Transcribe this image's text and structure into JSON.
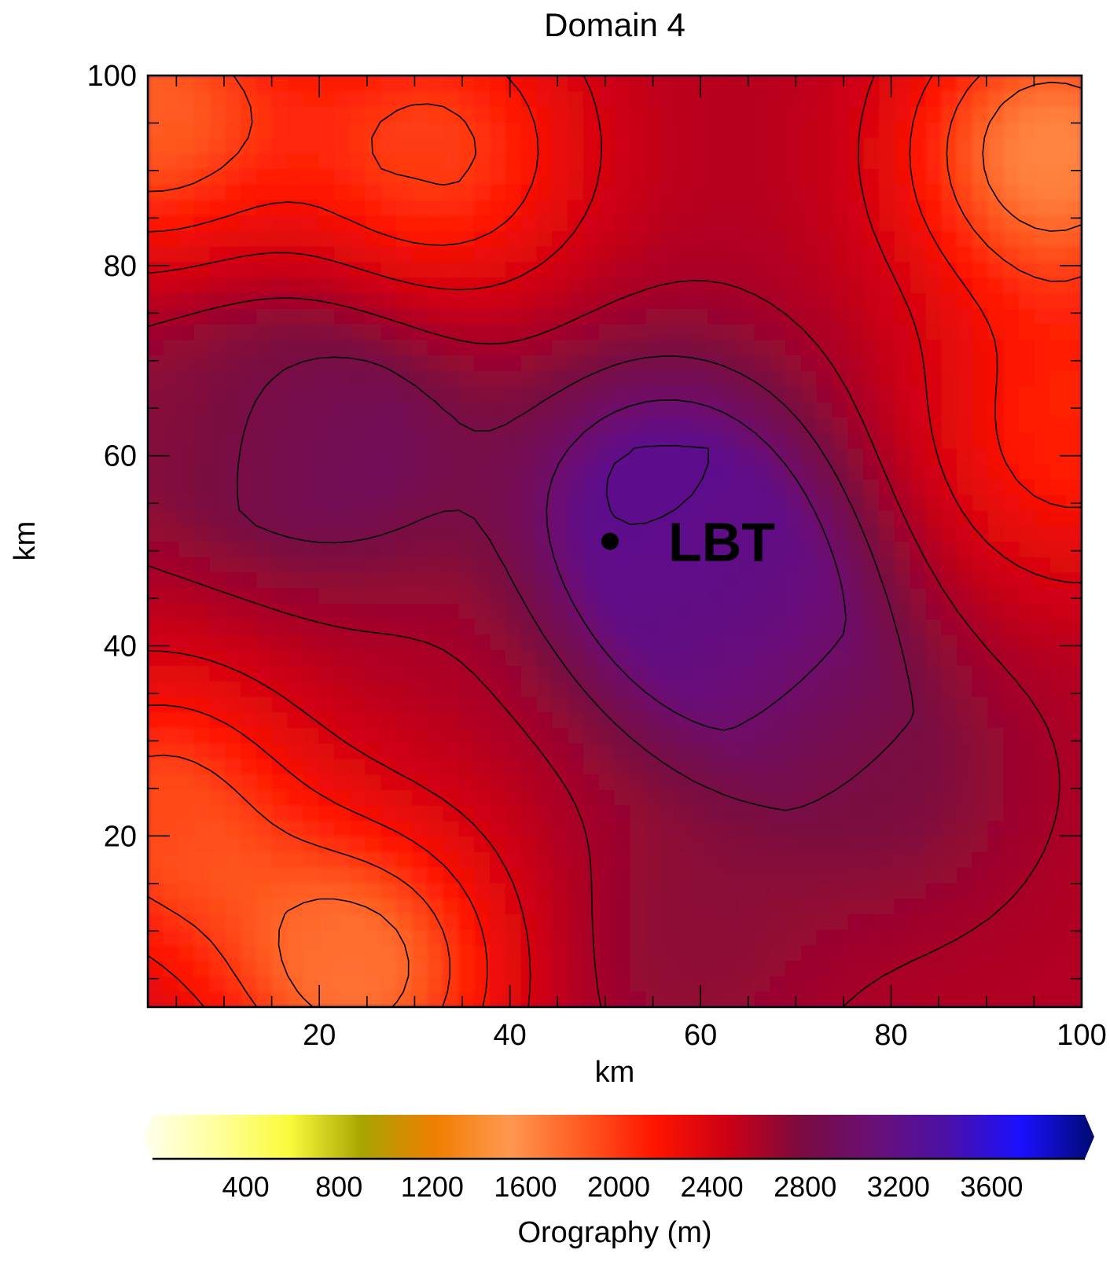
{
  "chart_data": {
    "type": "heatmap",
    "title": "Domain 4",
    "xlabel": "km",
    "ylabel": "km",
    "xlim": [
      2,
      100
    ],
    "ylim": [
      2,
      100
    ],
    "x_ticks": [
      20,
      40,
      60,
      80,
      100
    ],
    "y_ticks": [
      20,
      40,
      60,
      80,
      100
    ],
    "x_tick_labels": [
      "20",
      "40",
      "60",
      "80",
      "100"
    ],
    "y_tick_labels": [
      "20",
      "40",
      "60",
      "80",
      "100"
    ],
    "marker": {
      "label": "LBT",
      "x": 50.5,
      "y": 51
    },
    "colorbar": {
      "label": "Orography (m)",
      "range": [
        0,
        4000
      ],
      "ticks": [
        400,
        800,
        1200,
        1600,
        2000,
        2400,
        2800,
        3200,
        3600
      ],
      "tick_labels": [
        "400",
        "800",
        "1200",
        "1600",
        "2000",
        "2400",
        "2800",
        "3200",
        "3600"
      ],
      "colors": [
        "#fffff0",
        "#ffff9e",
        "#fafa3c",
        "#a8a400",
        "#f07e00",
        "#ff9850",
        "#ff5a20",
        "#ff1400",
        "#cc0014",
        "#7a0a40",
        "#6a1078",
        "#4a10a8",
        "#1a10ff",
        "#000a70"
      ]
    },
    "grid": "off",
    "contour_interval_m": 200,
    "field_peaks": [
      {
        "x": 56,
        "y": 55,
        "value_m": 3250
      },
      {
        "x": 64,
        "y": 42,
        "value_m": 3150
      },
      {
        "x": 22,
        "y": 62,
        "value_m": 2950
      },
      {
        "x": 58,
        "y": 8,
        "value_m": 2700
      },
      {
        "x": 80,
        "y": 26,
        "value_m": 2750
      },
      {
        "x": 5,
        "y": 64,
        "value_m": 2700
      }
    ],
    "field_lows": [
      {
        "x": 97,
        "y": 92,
        "value_m": 1600
      },
      {
        "x": 24,
        "y": 6,
        "value_m": 1700
      },
      {
        "x": 2,
        "y": 96,
        "value_m": 1800
      },
      {
        "x": 32,
        "y": 92,
        "value_m": 1950
      },
      {
        "x": 99,
        "y": 62,
        "value_m": 2100
      },
      {
        "x": 3,
        "y": 22,
        "value_m": 1900
      }
    ]
  }
}
